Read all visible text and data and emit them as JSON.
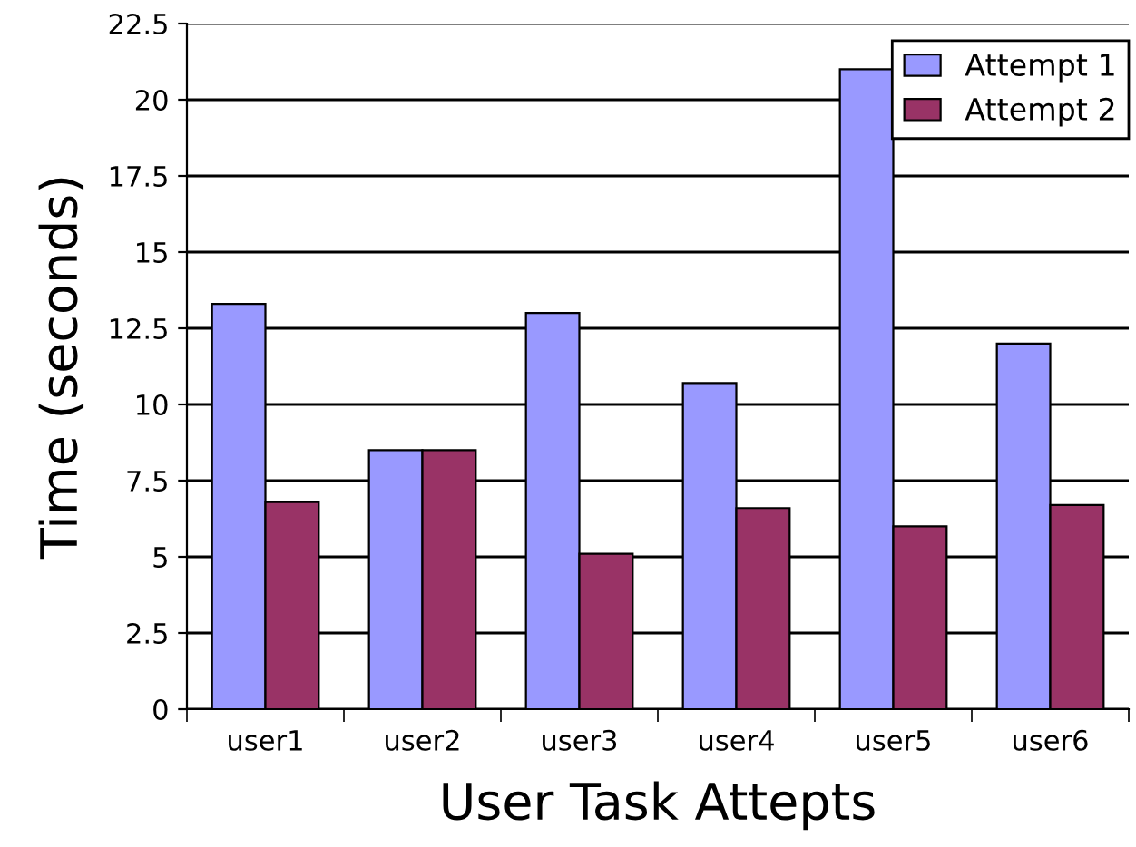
{
  "chart_data": {
    "type": "bar",
    "xlabel": "User Task Attepts",
    "ylabel": "Time (seconds)",
    "categories": [
      "user1",
      "user2",
      "user3",
      "user4",
      "user5",
      "user6"
    ],
    "series": [
      {
        "name": "Attempt 1",
        "color": "#9999ff",
        "values": [
          13.3,
          8.5,
          13.0,
          10.7,
          21.0,
          12.0
        ]
      },
      {
        "name": "Attempt 2",
        "color": "#993366",
        "values": [
          6.8,
          8.5,
          5.1,
          6.6,
          6.0,
          6.7
        ]
      }
    ],
    "ylim": [
      0,
      22.5
    ],
    "yticks": [
      0,
      2.5,
      5,
      7.5,
      10,
      12.5,
      15,
      17.5,
      20,
      22.5
    ],
    "grid": "y",
    "legend": "top right"
  }
}
